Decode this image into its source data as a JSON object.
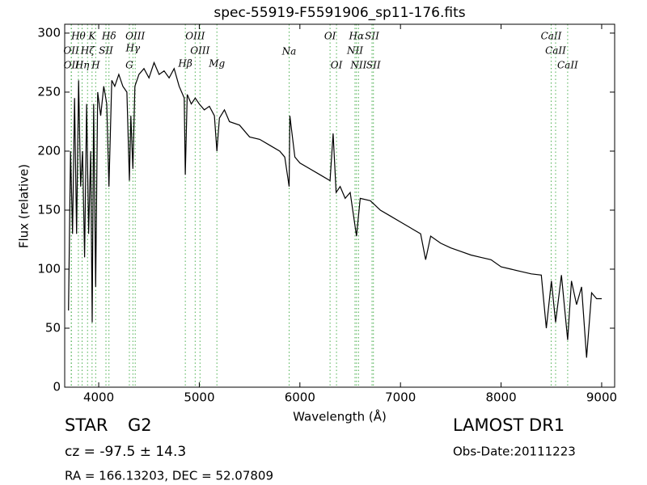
{
  "chart_data": {
    "type": "line",
    "title": "spec-55919-F5591906_sp11-176.fits",
    "xlabel": "Wavelength (Å)",
    "ylabel": "Flux (relative)",
    "xlim": [
      3662,
      9129
    ],
    "ylim": [
      0,
      307.5
    ],
    "xticks": [
      4000,
      5000,
      6000,
      7000,
      8000,
      9000
    ],
    "yticks": [
      0,
      50,
      100,
      150,
      200,
      250,
      300
    ],
    "series": [
      {
        "color": "#000000",
        "x": [
          3700,
          3720,
          3740,
          3760,
          3780,
          3800,
          3820,
          3840,
          3860,
          3880,
          3900,
          3920,
          3935,
          3950,
          3970,
          3990,
          4020,
          4050,
          4080,
          4102,
          4130,
          4160,
          4200,
          4240,
          4280,
          4305,
          4320,
          4340,
          4360,
          4400,
          4450,
          4500,
          4550,
          4600,
          4650,
          4700,
          4750,
          4800,
          4850,
          4861,
          4880,
          4920,
          4960,
          5000,
          5050,
          5100,
          5150,
          5175,
          5200,
          5250,
          5300,
          5400,
          5500,
          5600,
          5700,
          5800,
          5850,
          5893,
          5900,
          5950,
          6000,
          6100,
          6200,
          6300,
          6330,
          6360,
          6400,
          6450,
          6500,
          6563,
          6600,
          6700,
          6800,
          6900,
          7000,
          7100,
          7200,
          7250,
          7300,
          7400,
          7500,
          7600,
          7700,
          7800,
          7900,
          8000,
          8100,
          8200,
          8300,
          8400,
          8450,
          8500,
          8542,
          8600,
          8662,
          8700,
          8750,
          8800,
          8850,
          8900,
          8950,
          9000
        ],
        "values": [
          65,
          200,
          130,
          245,
          130,
          260,
          170,
          200,
          110,
          240,
          130,
          200,
          55,
          240,
          85,
          250,
          230,
          255,
          240,
          170,
          260,
          255,
          265,
          255,
          250,
          175,
          230,
          185,
          255,
          265,
          270,
          262,
          275,
          265,
          268,
          262,
          270,
          255,
          245,
          180,
          248,
          240,
          245,
          240,
          235,
          238,
          230,
          200,
          228,
          235,
          225,
          222,
          212,
          210,
          205,
          200,
          195,
          170,
          230,
          195,
          190,
          185,
          180,
          175,
          215,
          165,
          170,
          160,
          165,
          128,
          160,
          158,
          150,
          145,
          140,
          135,
          130,
          108,
          128,
          122,
          118,
          115,
          112,
          110,
          108,
          102,
          100,
          98,
          96,
          95,
          50,
          90,
          55,
          95,
          40,
          90,
          70,
          85,
          25,
          80,
          75,
          75
        ]
      }
    ],
    "line_color": "#4caf50",
    "lines": [
      {
        "x": 3727,
        "label": "OII"
      },
      {
        "x": 3729,
        "label": "OII"
      },
      {
        "x": 3798,
        "label": "Hθ"
      },
      {
        "x": 3835,
        "label": "Hη"
      },
      {
        "x": 3889,
        "label": "Hζ"
      },
      {
        "x": 3934,
        "label": "K"
      },
      {
        "x": 3970,
        "label": "H"
      },
      {
        "x": 4072,
        "label": "SII"
      },
      {
        "x": 4102,
        "label": "Hδ"
      },
      {
        "x": 4305,
        "label": "G"
      },
      {
        "x": 4340,
        "label": "Hγ"
      },
      {
        "x": 4363,
        "label": "OIII"
      },
      {
        "x": 4861,
        "label": "Hβ"
      },
      {
        "x": 4959,
        "label": "OIII"
      },
      {
        "x": 5007,
        "label": "OIII"
      },
      {
        "x": 5175,
        "label": "Mg"
      },
      {
        "x": 5893,
        "label": "Na"
      },
      {
        "x": 6300,
        "label": "OI"
      },
      {
        "x": 6364,
        "label": "OI"
      },
      {
        "x": 6548,
        "label": "NII"
      },
      {
        "x": 6563,
        "label": "Hα"
      },
      {
        "x": 6583,
        "label": "NII"
      },
      {
        "x": 6717,
        "label": "SII"
      },
      {
        "x": 6731,
        "label": "SII"
      },
      {
        "x": 8498,
        "label": "CaII"
      },
      {
        "x": 8542,
        "label": "CaII"
      },
      {
        "x": 8662,
        "label": "CaII"
      }
    ],
    "annotations": {
      "class": "STAR",
      "subclass": "G2",
      "cz": "cz = -97.5 ± 14.3",
      "coords": "RA = 166.13203, DEC = 52.07809",
      "survey": "LAMOST DR1",
      "obs_date": "Obs-Date:20111223"
    }
  }
}
